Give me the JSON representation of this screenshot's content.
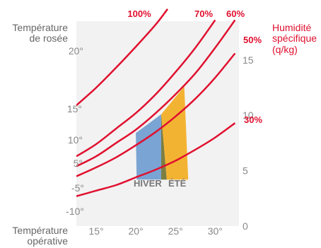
{
  "chart_data": {
    "type": "line",
    "left_axis": {
      "title_lines": [
        "Température",
        "de rosée"
      ],
      "ticks": [
        "20°",
        "15°",
        "10°",
        "5°",
        "-5°",
        "-10°"
      ]
    },
    "right_axis": {
      "title_lines": [
        "Humidité",
        "spécifique",
        "(q/kg)"
      ],
      "ticks": [
        "15",
        "10",
        "5",
        "0"
      ],
      "range": [
        0,
        18.5
      ]
    },
    "x_axis": {
      "title_lines": [
        "Température",
        "opérative"
      ],
      "ticks": [
        "15°",
        "20°",
        "25°",
        "30°"
      ],
      "range": [
        12.5,
        33
      ]
    },
    "series": [
      {
        "name": "100%",
        "x": [
          12.5,
          15,
          17.5,
          20,
          22.5,
          24
        ],
        "y": [
          10.9,
          12.5,
          14.3,
          16.2,
          18.2,
          19.6
        ]
      },
      {
        "name": "70%",
        "x": [
          12.5,
          15,
          17.5,
          20,
          22.5,
          25,
          27.5,
          30
        ],
        "y": [
          6.3,
          7.4,
          8.8,
          10.2,
          11.9,
          13.9,
          16.1,
          18.6
        ]
      },
      {
        "name": "60%",
        "x": [
          12.5,
          15,
          17.5,
          20,
          22.5,
          25,
          27.5,
          30,
          32.5
        ],
        "y": [
          5.4,
          6.3,
          7.5,
          8.7,
          10.2,
          11.9,
          13.8,
          16.1,
          18.6
        ]
      },
      {
        "name": "50%",
        "x": [
          12.5,
          15,
          17.5,
          20,
          22.5,
          25,
          27.5,
          30,
          32.5
        ],
        "y": [
          4.5,
          5.3,
          6.2,
          7.3,
          8.5,
          9.9,
          11.5,
          13.4,
          15.6
        ]
      },
      {
        "name": "30%",
        "x": [
          12.5,
          15,
          17.5,
          20,
          22.5,
          25,
          27.5,
          30,
          32.5
        ],
        "y": [
          2.7,
          3.2,
          3.7,
          4.4,
          5.1,
          5.9,
          6.9,
          8.0,
          9.3
        ]
      }
    ],
    "zones": [
      {
        "name": "HIVER",
        "color": "#7aa4d4",
        "x": [
          20,
          23.2,
          23.2,
          20.1
        ],
        "y": [
          8.4,
          10.1,
          4.2,
          4.2
        ]
      },
      {
        "name": "overlap",
        "color": "#7d7e42",
        "x": [
          22.8,
          23.2,
          23.9,
          23.2,
          23.2
        ],
        "y": [
          10.0,
          10.1,
          4.2,
          4.2,
          10.1
        ]
      },
      {
        "name": "ÉTÉ",
        "color": "#f3b332",
        "x": [
          23.2,
          26.1,
          26.6,
          23.9
        ],
        "y": [
          10.1,
          12.6,
          4.2,
          4.2
        ]
      }
    ],
    "line_color": "#e0102f",
    "grid": false,
    "legend": "inline"
  }
}
